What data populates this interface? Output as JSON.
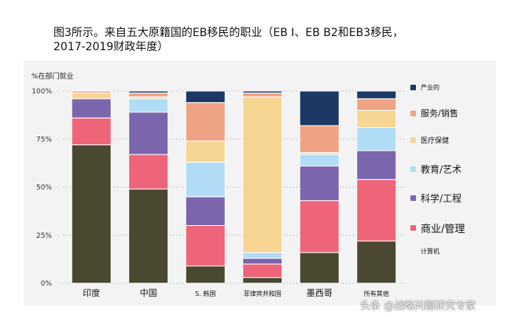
{
  "title_lines": [
    "图3所示。来自五大原籍国的EB移民的职业（EB I、EB B2和EB3移民，",
    "2017-2019财政年度）"
  ],
  "watermark": "头条 @战略问题研究专家",
  "colors": {
    "computer": "#4a4830",
    "business": "#ee6478",
    "science": "#7b66ae",
    "education": "#b0dcf5",
    "health": "#f7d592",
    "service": "#eea384",
    "production": "#1c3863"
  },
  "chart_data": {
    "type": "bar",
    "stacked": true,
    "ylabel": "%在部门就业",
    "ylim": [
      0,
      100
    ],
    "yticks": [
      "0%",
      "25%",
      "50%",
      "75%",
      "100%"
    ],
    "categories": [
      "印度",
      "中国",
      "S. 韩国",
      "菲律宾共和国",
      "墨西哥",
      "所有其他"
    ],
    "series": [
      {
        "name": "计算机",
        "color_key": "computer",
        "values": [
          72,
          49,
          9,
          3,
          16,
          22
        ]
      },
      {
        "name": "商业/管理",
        "color_key": "business",
        "values": [
          14,
          18,
          21,
          7,
          27,
          32
        ]
      },
      {
        "name": "科学/工程",
        "color_key": "science",
        "values": [
          10,
          22,
          15,
          3,
          18,
          15
        ]
      },
      {
        "name": "教育/艺术",
        "color_key": "education",
        "values": [
          0,
          7,
          18,
          3,
          6,
          12
        ]
      },
      {
        "name": "医疗保健",
        "color_key": "health",
        "values": [
          3,
          1,
          11,
          81,
          1,
          9
        ]
      },
      {
        "name": "服务/销售",
        "color_key": "service",
        "values": [
          1,
          2,
          20,
          2,
          14,
          6
        ]
      },
      {
        "name": "产业的",
        "color_key": "production",
        "values": [
          0,
          1,
          6,
          1,
          18,
          4
        ]
      }
    ],
    "legend_order": [
      "产业的",
      "服务/销售",
      "医疗保健",
      "教育/艺术",
      "科学/工程",
      "商业/管理",
      "计算机"
    ],
    "legend_position": "right"
  }
}
